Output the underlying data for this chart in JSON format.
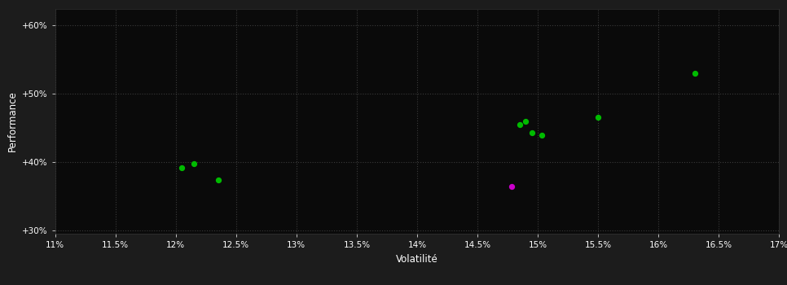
{
  "background_color": "#1c1c1c",
  "plot_bg_color": "#0a0a0a",
  "grid_color": "#404040",
  "text_color": "#ffffff",
  "xlabel": "Volatilité",
  "ylabel": "Performance",
  "xlim": [
    0.11,
    0.17
  ],
  "ylim": [
    0.295,
    0.625
  ],
  "xticks": [
    0.11,
    0.115,
    0.12,
    0.125,
    0.13,
    0.135,
    0.14,
    0.145,
    0.15,
    0.155,
    0.16,
    0.165,
    0.17
  ],
  "yticks": [
    0.3,
    0.4,
    0.5,
    0.6
  ],
  "ytick_labels": [
    "+30%",
    "+40%",
    "+50%",
    "+60%"
  ],
  "xtick_labels": [
    "11%",
    "11.5%",
    "12%",
    "12.5%",
    "13%",
    "13.5%",
    "14%",
    "14.5%",
    "15%",
    "15.5%",
    "16%",
    "16.5%",
    "17%"
  ],
  "green_points": [
    [
      0.1205,
      0.392
    ],
    [
      0.1215,
      0.398
    ],
    [
      0.1235,
      0.374
    ],
    [
      0.1485,
      0.455
    ],
    [
      0.149,
      0.46
    ],
    [
      0.1495,
      0.443
    ],
    [
      0.1503,
      0.439
    ],
    [
      0.155,
      0.466
    ],
    [
      0.163,
      0.53
    ]
  ],
  "magenta_points": [
    [
      0.1478,
      0.364
    ]
  ],
  "point_size": 18,
  "green_color": "#00bb00",
  "magenta_color": "#cc00cc"
}
